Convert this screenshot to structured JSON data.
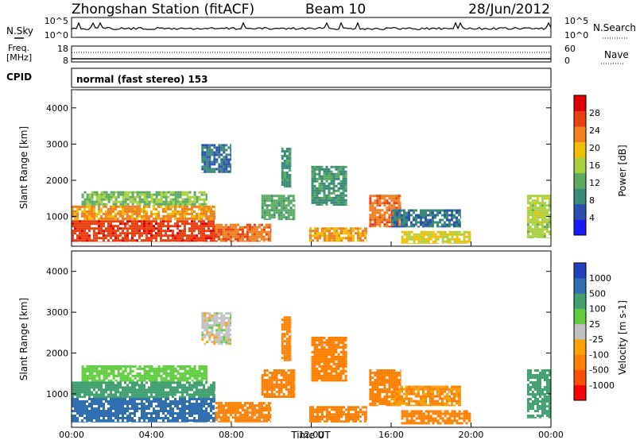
{
  "header": {
    "station": "Zhongshan Station (fitACF)",
    "beam": "Beam 10",
    "date": "28/Jun/2012"
  },
  "aux": {
    "nsky_label": "N.Sky",
    "nsky_tick_top": "10^5",
    "nsky_tick_bottom": "10^0",
    "nsearch_label": "N.Search",
    "nsearch_tick_top": "10^5",
    "nsearch_tick_bottom": "10^0",
    "freq_label_top": "Freq.",
    "freq_label_bottom": "[MHz]",
    "freq_tick_top": "18",
    "freq_tick_bottom": "8",
    "nave_label": "Nave",
    "nave_tick_top": "60",
    "nave_tick_bottom": "0",
    "cpid_label": "CPID",
    "cpid_text": "normal (fast stereo) 153"
  },
  "colors": {
    "power": [
      "#1a1aff",
      "#2a4fb0",
      "#3a8a7a",
      "#5aaa60",
      "#a8d040",
      "#f0c000",
      "#f08020",
      "#e84010",
      "#e00000"
    ],
    "velocity": [
      "#ff0000",
      "#ff5000",
      "#ff8000",
      "#ffa000",
      "#c0c0c0",
      "#60cc40",
      "#40a070",
      "#3070b0",
      "#2040c0"
    ]
  },
  "chart_data": [
    {
      "type": "heatmap",
      "name": "power",
      "xlabel": "",
      "ylabel": "Slant Range [km]",
      "xlim": [
        0,
        24
      ],
      "ylim": [
        180,
        4500
      ],
      "yticks": [
        1000,
        2000,
        3000,
        4000
      ],
      "colorbar": {
        "label": "Power [dB]",
        "range": [
          0,
          32
        ],
        "ticks": [
          "4",
          "8",
          "12",
          "16",
          "20",
          "24",
          "28"
        ],
        "tick_values": [
          4,
          8,
          12,
          16,
          20,
          24,
          28
        ]
      },
      "regions": [
        {
          "t0": 0.0,
          "t1": 7.2,
          "r0": 300,
          "r1": 900,
          "value": 27
        },
        {
          "t0": 0.0,
          "t1": 7.2,
          "r0": 900,
          "r1": 1300,
          "value": 22
        },
        {
          "t0": 0.5,
          "t1": 6.8,
          "r0": 1300,
          "r1": 1700,
          "value": 14
        },
        {
          "t0": 7.2,
          "t1": 10.0,
          "r0": 300,
          "r1": 800,
          "value": 24
        },
        {
          "t0": 6.5,
          "t1": 8.0,
          "r0": 2200,
          "r1": 3000,
          "value": 8
        },
        {
          "t0": 9.5,
          "t1": 11.2,
          "r0": 900,
          "r1": 1600,
          "value": 12
        },
        {
          "t0": 10.5,
          "t1": 11.0,
          "r0": 1800,
          "r1": 2900,
          "value": 10
        },
        {
          "t0": 11.9,
          "t1": 14.8,
          "r0": 300,
          "r1": 700,
          "value": 22
        },
        {
          "t0": 12.0,
          "t1": 13.8,
          "r0": 1300,
          "r1": 2400,
          "value": 10
        },
        {
          "t0": 14.9,
          "t1": 16.5,
          "r0": 700,
          "r1": 1600,
          "value": 24
        },
        {
          "t0": 16.5,
          "t1": 20.0,
          "r0": 250,
          "r1": 600,
          "value": 18
        },
        {
          "t0": 16.0,
          "t1": 19.5,
          "r0": 700,
          "r1": 1200,
          "value": 8
        },
        {
          "t0": 22.8,
          "t1": 24.0,
          "r0": 400,
          "r1": 1600,
          "value": 16
        }
      ]
    },
    {
      "type": "heatmap",
      "name": "velocity",
      "xlabel": "Time UT",
      "ylabel": "Slant Range [km]",
      "xlim": [
        0,
        24
      ],
      "ylim": [
        180,
        4500
      ],
      "xticks": [
        "00:00",
        "04:00",
        "08:00",
        "12:00",
        "16:00",
        "20:00",
        "00:00"
      ],
      "xtick_values": [
        0,
        4,
        8,
        12,
        16,
        20,
        24
      ],
      "yticks": [
        1000,
        2000,
        3000,
        4000
      ],
      "colorbar": {
        "label": "Velocity [m s-1]",
        "ticks": [
          "-1000",
          "-500",
          "-100",
          "-25",
          "25",
          "100",
          "500",
          "1000"
        ]
      },
      "regions": [
        {
          "t0": 0.0,
          "t1": 7.2,
          "r0": 300,
          "r1": 900,
          "value": 700
        },
        {
          "t0": 0.0,
          "t1": 7.2,
          "r0": 900,
          "r1": 1300,
          "value": 200
        },
        {
          "t0": 0.5,
          "t1": 6.8,
          "r0": 1300,
          "r1": 1700,
          "value": 60
        },
        {
          "t0": 7.2,
          "t1": 10.0,
          "r0": 300,
          "r1": 800,
          "value": -300
        },
        {
          "t0": 6.5,
          "t1": 8.0,
          "r0": 2200,
          "r1": 3000,
          "value": 0
        },
        {
          "t0": 9.5,
          "t1": 11.2,
          "r0": 900,
          "r1": 1600,
          "value": -300
        },
        {
          "t0": 10.5,
          "t1": 11.0,
          "r0": 1800,
          "r1": 2900,
          "value": -200
        },
        {
          "t0": 11.9,
          "t1": 14.8,
          "r0": 300,
          "r1": 700,
          "value": -300
        },
        {
          "t0": 12.0,
          "t1": 13.8,
          "r0": 1300,
          "r1": 2400,
          "value": -300
        },
        {
          "t0": 14.9,
          "t1": 16.5,
          "r0": 700,
          "r1": 1600,
          "value": -300
        },
        {
          "t0": 16.5,
          "t1": 20.0,
          "r0": 250,
          "r1": 600,
          "value": -200
        },
        {
          "t0": 16.0,
          "t1": 19.5,
          "r0": 700,
          "r1": 1200,
          "value": -100
        },
        {
          "t0": 22.8,
          "t1": 24.0,
          "r0": 400,
          "r1": 1600,
          "value": 200
        }
      ]
    }
  ]
}
